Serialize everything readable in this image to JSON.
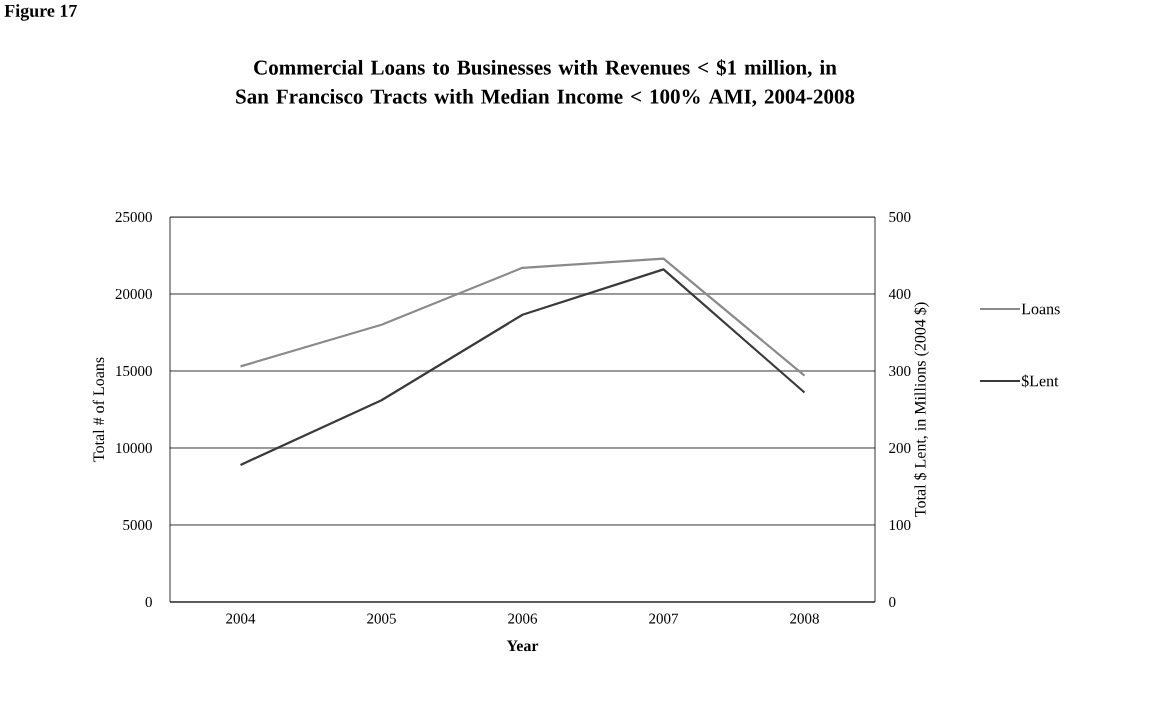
{
  "chart_data": {
    "type": "line",
    "title": "Commercial Loans to Businesses with Revenues < $1 million, in San Francisco Tracts with Median Income < 100% AMI, 2004-2008",
    "annotations": [
      "Figure 17"
    ],
    "xlabel": "Year",
    "ylabel": "Total # of Loans",
    "y2label": "Total $ Lent, in Millions (2004 $)",
    "categories": [
      "2004",
      "2005",
      "2006",
      "2007",
      "2008"
    ],
    "series": [
      {
        "name": "Loans",
        "color": "#8a8a8a",
        "values": [
          15300,
          18000,
          21700,
          22300,
          14700
        ]
      },
      {
        "name": "$Lent",
        "color": "#3a3a3a",
        "axis": "y2",
        "values": [
          178,
          262,
          373,
          432,
          272
        ]
      }
    ],
    "ylim": [
      0,
      25000
    ],
    "yticks": [
      0,
      5000,
      10000,
      15000,
      20000,
      25000
    ],
    "y2lim": [
      0,
      500
    ],
    "y2ticks": [
      0,
      100,
      200,
      300,
      400,
      500
    ],
    "grid": "y",
    "legend": "right",
    "line_style": "solid",
    "marker": "none"
  }
}
